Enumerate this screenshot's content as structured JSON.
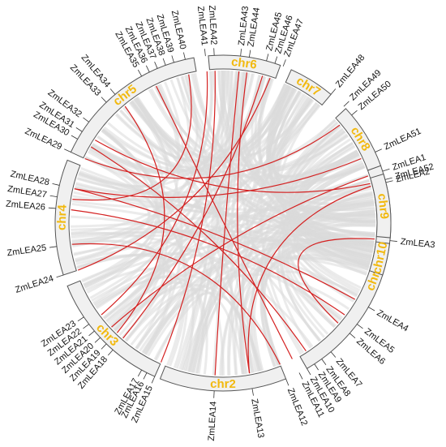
{
  "colors": {
    "background_link": "#dadada",
    "highlight_link": "#d42020",
    "chromosome_fill": "#f0f0f0",
    "chromosome_stroke": "#555555",
    "chromosome_label": "#f2b90f",
    "gene_label": "#111111"
  },
  "chromosomes": [
    {
      "name": "chr1",
      "start_deg": 70,
      "end_deg": 150
    },
    {
      "name": "chr2",
      "start_deg": 158,
      "end_deg": 202
    },
    {
      "name": "chr3",
      "start_deg": 204,
      "end_deg": 248
    },
    {
      "name": "chr4",
      "start_deg": 252,
      "end_deg": 292
    },
    {
      "name": "chr5",
      "start_deg": 295,
      "end_deg": 350
    },
    {
      "name": "chr6",
      "start_deg": 355,
      "end_deg": 380
    },
    {
      "name": "chr7",
      "start_deg": 384,
      "end_deg": 400
    },
    {
      "name": "chr8",
      "start_deg": 407,
      "end_deg": 430
    },
    {
      "name": "chr9",
      "start_deg": 433,
      "end_deg": 455
    },
    {
      "name": "chr10",
      "start_deg": 457,
      "end_deg": 468
    }
  ],
  "genes": [
    {
      "name": "ZmLEA1",
      "deg": 72
    },
    {
      "name": "ZmLEA2",
      "deg": 76
    },
    {
      "name": "ZmLEA3",
      "deg": 96
    },
    {
      "name": "ZmLEA4",
      "deg": 120
    },
    {
      "name": "ZmLEA5",
      "deg": 127
    },
    {
      "name": "ZmLEA6",
      "deg": 131
    },
    {
      "name": "ZmLEA7",
      "deg": 140
    },
    {
      "name": "ZmLEA8",
      "deg": 144
    },
    {
      "name": "ZmLEA9",
      "deg": 147
    },
    {
      "name": "ZmLEA10",
      "deg": 150
    },
    {
      "name": "ZmLEA11",
      "deg": 153
    },
    {
      "name": "ZmLEA12",
      "deg": 158
    },
    {
      "name": "ZmLEA13",
      "deg": 170
    },
    {
      "name": "ZmLEA14",
      "deg": 183
    },
    {
      "name": "ZmLEA15",
      "deg": 204
    },
    {
      "name": "ZmLEA16",
      "deg": 207
    },
    {
      "name": "ZmLEA17",
      "deg": 209
    },
    {
      "name": "ZmLEA18",
      "deg": 221
    },
    {
      "name": "ZmLEA19",
      "deg": 224
    },
    {
      "name": "ZmLEA20",
      "deg": 227
    },
    {
      "name": "ZmLEA21",
      "deg": 230
    },
    {
      "name": "ZmLEA22",
      "deg": 233
    },
    {
      "name": "ZmLEA23",
      "deg": 236
    },
    {
      "name": "ZmLEA24",
      "deg": 252
    },
    {
      "name": "ZmLEA25",
      "deg": 262
    },
    {
      "name": "ZmLEA26",
      "deg": 275
    },
    {
      "name": "ZmLEA27",
      "deg": 279
    },
    {
      "name": "ZmLEA28",
      "deg": 283
    },
    {
      "name": "ZmLEA29",
      "deg": 295
    },
    {
      "name": "ZmLEA30",
      "deg": 300
    },
    {
      "name": "ZmLEA31",
      "deg": 303
    },
    {
      "name": "ZmLEA32",
      "deg": 307
    },
    {
      "name": "ZmLEA33",
      "deg": 316
    },
    {
      "name": "ZmLEA34",
      "deg": 320
    },
    {
      "name": "ZmLEA35",
      "deg": 331
    },
    {
      "name": "ZmLEA36",
      "deg": 334
    },
    {
      "name": "ZmLEA37",
      "deg": 337
    },
    {
      "name": "ZmLEA38",
      "deg": 340
    },
    {
      "name": "ZmLEA39",
      "deg": 343
    },
    {
      "name": "ZmLEA40",
      "deg": 347
    },
    {
      "name": "ZmLEA41",
      "deg": 354
    },
    {
      "name": "ZmLEA42",
      "deg": 357
    },
    {
      "name": "ZmLEA43",
      "deg": 6
    },
    {
      "name": "ZmLEA44",
      "deg": 9
    },
    {
      "name": "ZmLEA45",
      "deg": 15
    },
    {
      "name": "ZmLEA46",
      "deg": 18
    },
    {
      "name": "ZmLEA47",
      "deg": 21
    },
    {
      "name": "ZmLEA48",
      "deg": 40
    },
    {
      "name": "ZmLEA49",
      "deg": 46
    },
    {
      "name": "ZmLEA50",
      "deg": 50
    },
    {
      "name": "ZmLEA51",
      "deg": 65
    },
    {
      "name": "ZmLEA52",
      "deg": 75
    }
  ]
}
